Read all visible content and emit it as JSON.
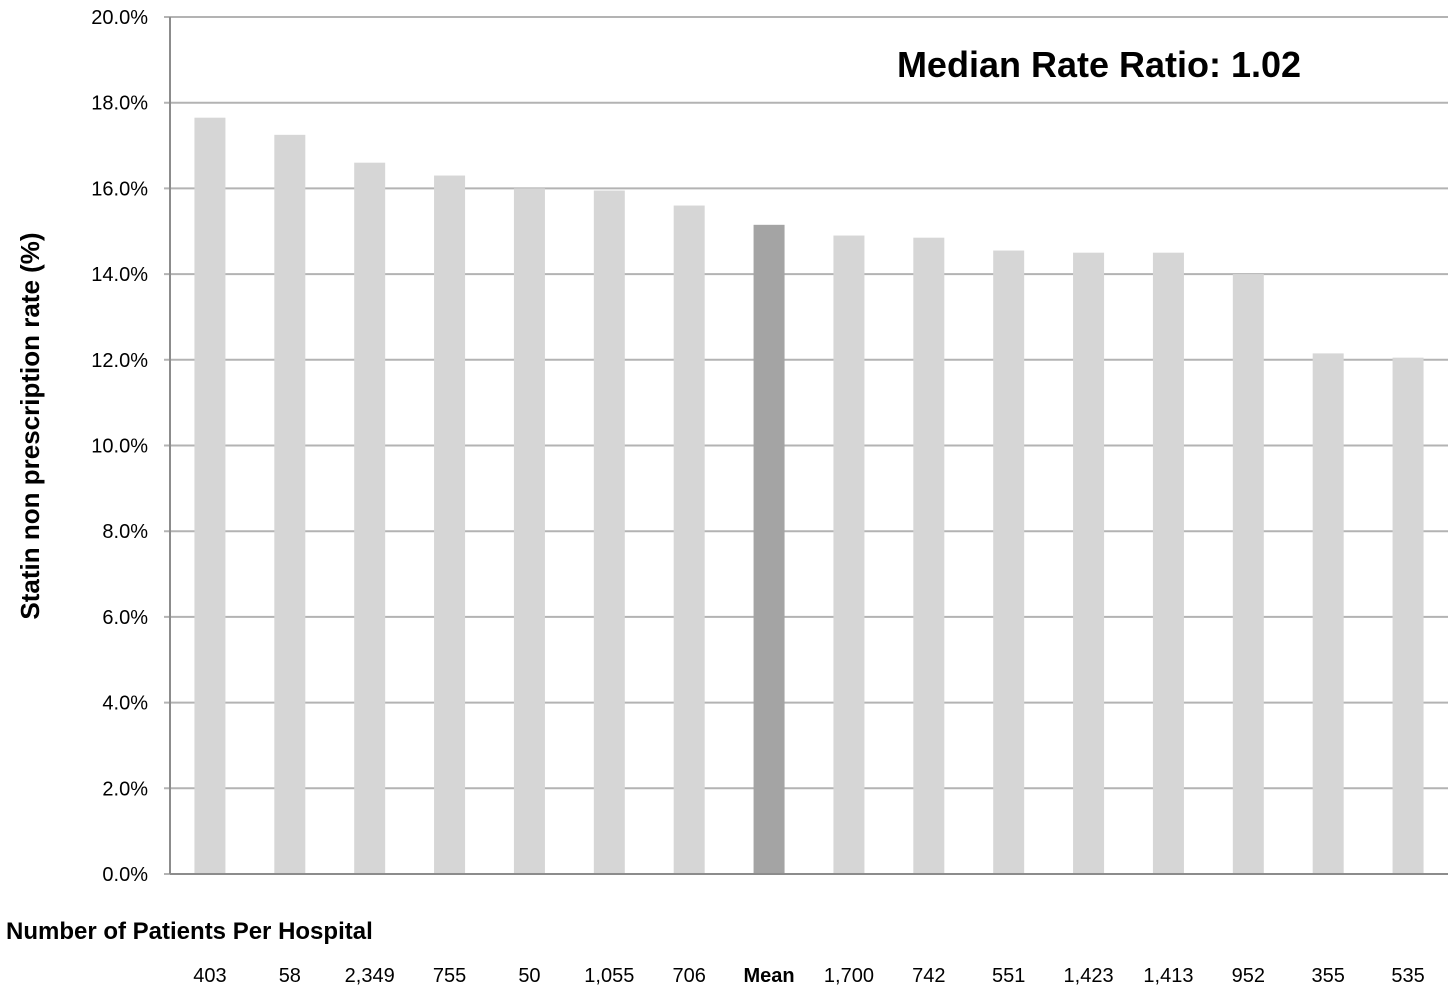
{
  "chart_data": {
    "type": "bar",
    "categories": [
      "403",
      "58",
      "2,349",
      "755",
      "50",
      "1,055",
      "706",
      "Mean",
      "1,700",
      "742",
      "551",
      "1,423",
      "1,413",
      "952",
      "355",
      "535"
    ],
    "values": [
      17.65,
      17.25,
      16.6,
      16.3,
      16.0,
      15.95,
      15.6,
      15.15,
      14.9,
      14.85,
      14.55,
      14.5,
      14.5,
      14.0,
      12.15,
      12.05
    ],
    "highlight_category": "Mean",
    "colors": {
      "bar": "#d6d6d6",
      "highlight": "#a4a4a4",
      "grid": "#b3b3b3",
      "axis": "#8c8c8c"
    },
    "ylim": [
      0,
      20
    ],
    "yticks": [
      "0.0%",
      "2.0%",
      "4.0%",
      "6.0%",
      "8.0%",
      "10.0%",
      "12.0%",
      "14.0%",
      "16.0%",
      "18.0%",
      "20.0%"
    ],
    "ylabel": "Statin non prescription rate (%)",
    "xlabel": "Number of Patients Per Hospital",
    "annotation": "Median Rate Ratio: 1.02",
    "grid": true,
    "legend": "none"
  }
}
